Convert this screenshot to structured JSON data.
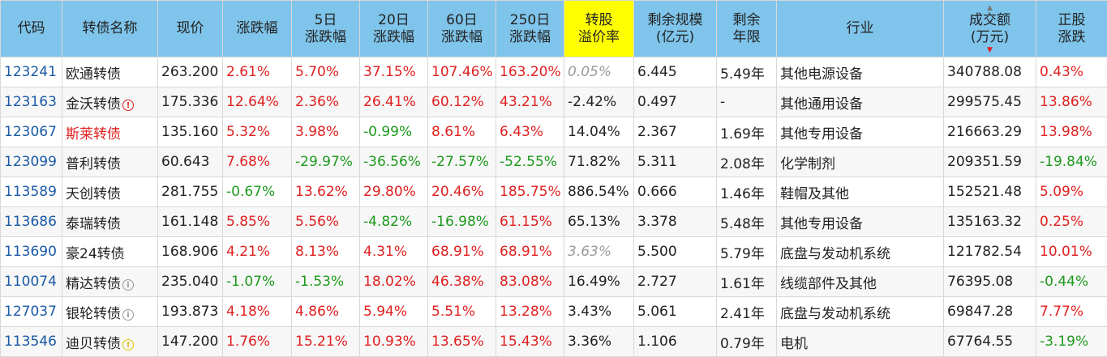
{
  "headers": {
    "code": "代码",
    "name": "转债名称",
    "price": "现价",
    "change": "涨跌幅",
    "d5": [
      "5日",
      "涨跌幅"
    ],
    "d20": [
      "20日",
      "涨跌幅"
    ],
    "d60": [
      "60日",
      "涨跌幅"
    ],
    "d250": [
      "250日",
      "涨跌幅"
    ],
    "premium": [
      "转股",
      "溢价率"
    ],
    "remaining_scale": [
      "剩余规模",
      "(亿元)"
    ],
    "remaining_years": [
      "剩余",
      "年限"
    ],
    "industry": "行业",
    "turnover": [
      "成交额",
      "(万元)"
    ],
    "stock_change": [
      "正股",
      "涨跌"
    ]
  },
  "rows": [
    {
      "code": "123241",
      "name": "欧通转债",
      "name_color": "normal",
      "badge": "",
      "price": "263.200",
      "change": "2.61%",
      "d5": "5.70%",
      "d20": "37.15%",
      "d60": "107.46%",
      "d250": "163.20%",
      "premium": "0.05%",
      "premium_style": "gray-italic",
      "scale": "6.445",
      "years": "5.49年",
      "industry": "其他电源设备",
      "turnover": "340788.08",
      "stock_change": "0.43%"
    },
    {
      "code": "123163",
      "name": "金沃转债",
      "name_color": "normal",
      "badge": "red",
      "price": "175.336",
      "change": "12.64%",
      "d5": "2.36%",
      "d20": "26.41%",
      "d60": "60.12%",
      "d250": "43.21%",
      "premium": "-2.42%",
      "premium_style": "normal",
      "scale": "0.497",
      "years": "-",
      "industry": "其他通用设备",
      "turnover": "299575.45",
      "stock_change": "13.86%"
    },
    {
      "code": "123067",
      "name": "斯莱转债",
      "name_color": "red",
      "badge": "",
      "price": "135.160",
      "change": "5.32%",
      "d5": "3.98%",
      "d20": "-0.99%",
      "d60": "8.61%",
      "d250": "6.43%",
      "premium": "14.04%",
      "premium_style": "normal",
      "scale": "2.367",
      "years": "1.69年",
      "industry": "其他专用设备",
      "turnover": "216663.29",
      "stock_change": "13.98%"
    },
    {
      "code": "123099",
      "name": "普利转债",
      "name_color": "normal",
      "badge": "",
      "price": "60.643",
      "change": "7.68%",
      "d5": "-29.97%",
      "d20": "-36.56%",
      "d60": "-27.57%",
      "d250": "-52.55%",
      "premium": "71.82%",
      "premium_style": "normal",
      "scale": "5.311",
      "years": "2.08年",
      "industry": "化学制剂",
      "turnover": "209351.59",
      "stock_change": "-19.84%"
    },
    {
      "code": "113589",
      "name": "天创转债",
      "name_color": "normal",
      "badge": "",
      "price": "281.755",
      "change": "-0.67%",
      "d5": "13.62%",
      "d20": "29.80%",
      "d60": "20.46%",
      "d250": "185.75%",
      "premium": "886.54%",
      "premium_style": "normal",
      "scale": "0.666",
      "years": "1.46年",
      "industry": "鞋帽及其他",
      "turnover": "152521.48",
      "stock_change": "5.09%"
    },
    {
      "code": "113686",
      "name": "泰瑞转债",
      "name_color": "normal",
      "badge": "",
      "price": "161.148",
      "change": "5.85%",
      "d5": "5.56%",
      "d20": "-4.82%",
      "d60": "-16.98%",
      "d250": "61.15%",
      "premium": "65.13%",
      "premium_style": "normal",
      "scale": "3.378",
      "years": "5.48年",
      "industry": "其他专用设备",
      "turnover": "135163.32",
      "stock_change": "0.25%"
    },
    {
      "code": "113690",
      "name": "豪24转债",
      "name_color": "normal",
      "badge": "",
      "price": "168.906",
      "change": "4.21%",
      "d5": "8.13%",
      "d20": "4.31%",
      "d60": "68.91%",
      "d250": "68.91%",
      "premium": "3.63%",
      "premium_style": "gray-italic",
      "scale": "5.500",
      "years": "5.79年",
      "industry": "底盘与发动机系统",
      "turnover": "121782.54",
      "stock_change": "10.01%"
    },
    {
      "code": "110074",
      "name": "精达转债",
      "name_color": "normal",
      "badge": "gray",
      "price": "235.040",
      "change": "-1.07%",
      "d5": "-1.53%",
      "d20": "18.02%",
      "d60": "46.38%",
      "d250": "83.08%",
      "premium": "16.49%",
      "premium_style": "normal",
      "scale": "2.727",
      "years": "1.61年",
      "industry": "线缆部件及其他",
      "turnover": "76395.08",
      "stock_change": "-0.44%"
    },
    {
      "code": "127037",
      "name": "银轮转债",
      "name_color": "normal",
      "badge": "gray",
      "price": "193.873",
      "change": "4.18%",
      "d5": "4.86%",
      "d20": "5.94%",
      "d60": "5.51%",
      "d250": "13.28%",
      "premium": "3.43%",
      "premium_style": "normal",
      "scale": "5.061",
      "years": "2.41年",
      "industry": "底盘与发动机系统",
      "turnover": "69847.28",
      "stock_change": "7.77%"
    },
    {
      "code": "113546",
      "name": "迪贝转债",
      "name_color": "normal",
      "badge": "yellow",
      "price": "147.200",
      "change": "1.76%",
      "d5": "15.21%",
      "d20": "10.93%",
      "d60": "13.65%",
      "d250": "15.43%",
      "premium": "3.36%",
      "premium_style": "normal",
      "scale": "1.106",
      "years": "0.79年",
      "industry": "电机",
      "turnover": "67764.55",
      "stock_change": "-3.19%"
    }
  ],
  "colors": {
    "header_bg": "#7fc4ea",
    "highlight_bg": "#ffff00",
    "positive": "#e02020",
    "negative": "#1d9a1d",
    "code": "#1a5aa6"
  }
}
